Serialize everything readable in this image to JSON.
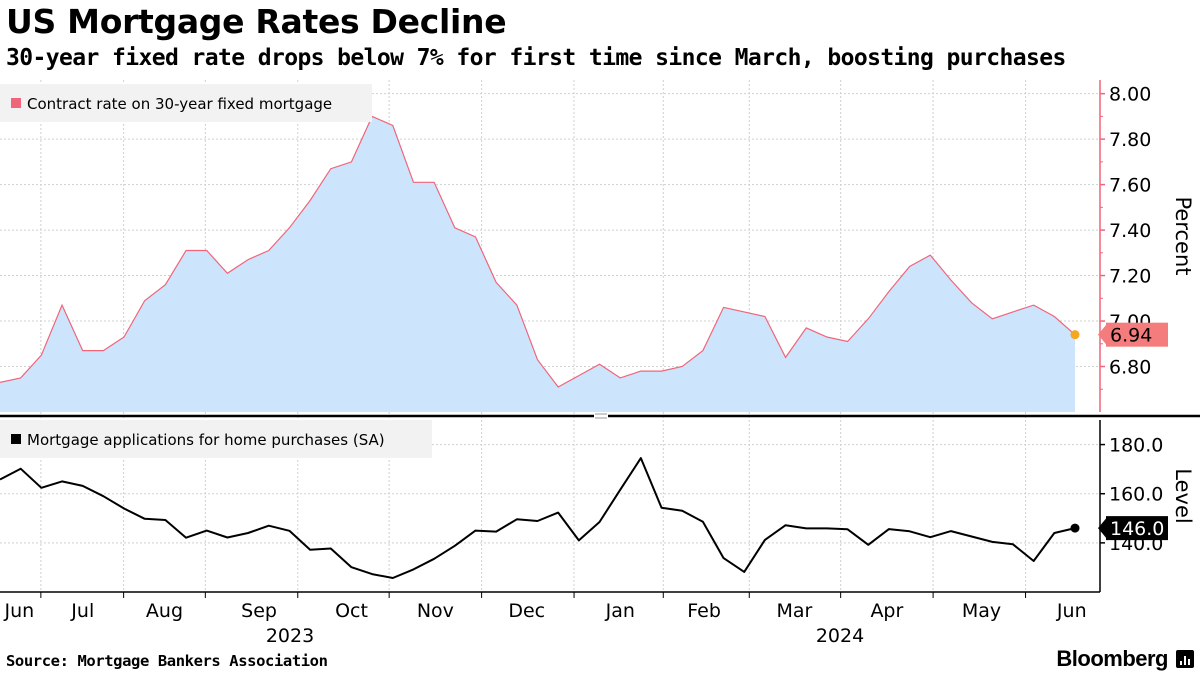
{
  "header": {
    "title": "US Mortgage Rates Decline",
    "subtitle": "30-year fixed rate drops below 7% for first time since March, boosting purchases"
  },
  "footer": {
    "source": "Source: Mortgage Bankers Association",
    "brand": "Bloomberg"
  },
  "colors": {
    "rate_line": "#f0657a",
    "rate_fill": "#cce5fc",
    "rate_marker": "#f5a623",
    "rate_label_bg": "#f47c7c",
    "purchase_line": "#000000",
    "grid": "#d0d0d0",
    "legend_bg": "#f2f2f2"
  },
  "chart_data": [
    {
      "type": "area",
      "title": "Contract rate on 30-year fixed mortgage",
      "legend": [
        "Contract rate on 30-year fixed mortgage"
      ],
      "ylabel": "Percent",
      "ylim": [
        6.6,
        8.06
      ],
      "yticks": [
        6.8,
        7.0,
        7.2,
        7.4,
        7.6,
        7.8,
        8.0
      ],
      "ytick_labels": [
        "6.80",
        "7.00",
        "7.20",
        "7.40",
        "7.60",
        "7.80",
        "8.00"
      ],
      "last_value_label": "6.94",
      "series": [
        {
          "name": "Contract rate on 30-year fixed mortgage",
          "values": [
            6.73,
            6.75,
            6.85,
            7.07,
            6.87,
            6.87,
            6.93,
            7.09,
            7.16,
            7.31,
            7.31,
            7.21,
            7.27,
            7.31,
            7.41,
            7.53,
            7.67,
            7.7,
            7.9,
            7.86,
            7.61,
            7.61,
            7.41,
            7.37,
            7.17,
            7.07,
            6.83,
            6.71,
            6.76,
            6.81,
            6.75,
            6.78,
            6.78,
            6.8,
            6.87,
            7.06,
            7.04,
            7.02,
            6.84,
            6.97,
            6.93,
            6.91,
            7.01,
            7.13,
            7.24,
            7.29,
            7.18,
            7.08,
            7.01,
            7.04,
            7.07,
            7.02,
            6.94
          ]
        }
      ]
    },
    {
      "type": "line",
      "title": "Mortgage applications for home purchases (SA)",
      "legend": [
        "Mortgage applications for home purchases (SA)"
      ],
      "ylabel": "Level",
      "ylim": [
        120,
        190
      ],
      "yticks": [
        140,
        160,
        180
      ],
      "ytick_labels": [
        "140.0",
        "160.0",
        "180.0"
      ],
      "last_value_label": "146.0",
      "series": [
        {
          "name": "Mortgage applications for home purchases (SA)",
          "values": [
            165.8,
            170.2,
            162.4,
            165.0,
            163.2,
            159.0,
            154.0,
            149.8,
            149.3,
            142.1,
            145.0,
            142.2,
            144.0,
            147.0,
            144.9,
            137.2,
            137.7,
            130.1,
            127.3,
            125.7,
            129.2,
            133.5,
            138.8,
            145.0,
            144.6,
            149.6,
            148.9,
            152.3,
            141.0,
            148.5,
            161.6,
            174.5,
            154.3,
            153.1,
            148.6,
            133.8,
            128.2,
            141.2,
            147.2,
            145.9,
            145.9,
            145.5,
            139.2,
            145.6,
            144.7,
            142.3,
            144.8,
            142.6,
            140.4,
            139.4,
            132.6,
            144.0,
            146.0
          ]
        }
      ]
    }
  ],
  "x_axis": {
    "month_labels": [
      "Jun",
      "Jul",
      "Aug",
      "Sep",
      "Oct",
      "Nov",
      "Dec",
      "Jan",
      "Feb",
      "Mar",
      "Apr",
      "May",
      "Jun"
    ],
    "year_labels": [
      "2023",
      "2024"
    ]
  }
}
